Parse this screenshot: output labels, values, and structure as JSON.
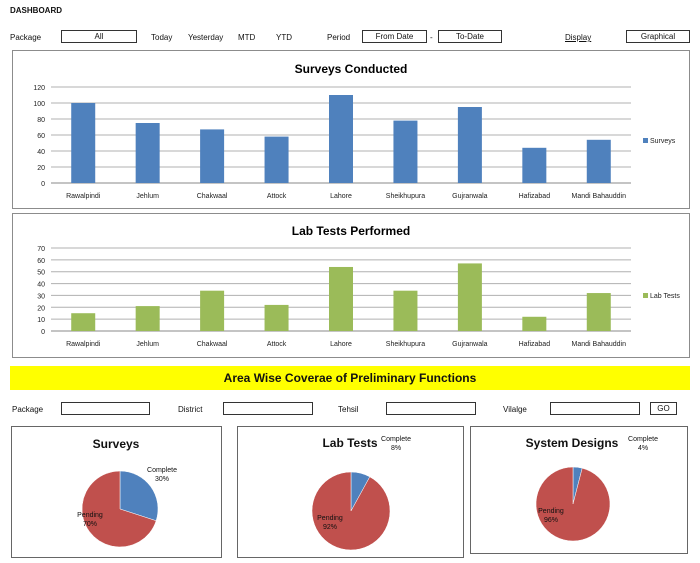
{
  "header": {
    "title": "DASHBOARD"
  },
  "filters": {
    "package_label": "Package",
    "package_value": "All",
    "today": "Today",
    "yesterday": "Yesterday",
    "mtd": "MTD",
    "ytd": "YTD",
    "period_label": "Period",
    "from_date": "From Date",
    "separator": "-",
    "to_date": "To-Date",
    "display_label": "Display",
    "display_value": "Graphical"
  },
  "chart_data": [
    {
      "type": "bar",
      "title": "Surveys Conducted",
      "categories": [
        "Rawalpindi",
        "Jehlum",
        "Chakwaal",
        "Attock",
        "Lahore",
        "Sheikhupura",
        "Gujranwala",
        "Hafizabad",
        "Mandi Bahauddin"
      ],
      "series": [
        {
          "name": "Surveys",
          "values": [
            100,
            75,
            67,
            58,
            110,
            78,
            95,
            44,
            54
          ]
        }
      ],
      "ylim": [
        0,
        120
      ],
      "yticks": [
        0,
        20,
        40,
        60,
        80,
        100,
        120
      ],
      "grid": true,
      "legend": "right",
      "color": "#4f81bd"
    },
    {
      "type": "bar",
      "title": "Lab Tests Performed",
      "categories": [
        "Rawalpindi",
        "Jehlum",
        "Chakwaal",
        "Attock",
        "Lahore",
        "Sheikhupura",
        "Gujranwala",
        "Hafizabad",
        "Mandi Bahauddin"
      ],
      "series": [
        {
          "name": "Lab Tests",
          "values": [
            15,
            21,
            34,
            22,
            54,
            34,
            57,
            12,
            32
          ]
        }
      ],
      "ylim": [
        0,
        70
      ],
      "yticks": [
        0,
        10,
        20,
        30,
        40,
        50,
        60,
        70
      ],
      "grid": true,
      "legend": "right",
      "color": "#9bbb59"
    },
    {
      "type": "pie",
      "title": "Surveys",
      "slices": [
        {
          "label": "Complete",
          "value": 30,
          "pct": "30%",
          "color": "#4f81bd"
        },
        {
          "label": "Pending",
          "value": 70,
          "pct": "70%",
          "color": "#c0504d"
        }
      ]
    },
    {
      "type": "pie",
      "title": "Lab Tests",
      "slices": [
        {
          "label": "Complete",
          "value": 8,
          "pct": "8%",
          "color": "#4f81bd"
        },
        {
          "label": "Pending",
          "value": 92,
          "pct": "92%",
          "color": "#c0504d"
        }
      ]
    },
    {
      "type": "pie",
      "title": "System Designs",
      "slices": [
        {
          "label": "Complete",
          "value": 4,
          "pct": "4%",
          "color": "#4f81bd"
        },
        {
          "label": "Pending",
          "value": 96,
          "pct": "96%",
          "color": "#c0504d"
        }
      ]
    }
  ],
  "banner": {
    "title": "Area Wise Coverae of Preliminary Functions"
  },
  "area_filters": {
    "package_label": "Package",
    "district_label": "District",
    "tehsil_label": "Tehsil",
    "village_label": "Vilalge",
    "go_label": "GO"
  }
}
